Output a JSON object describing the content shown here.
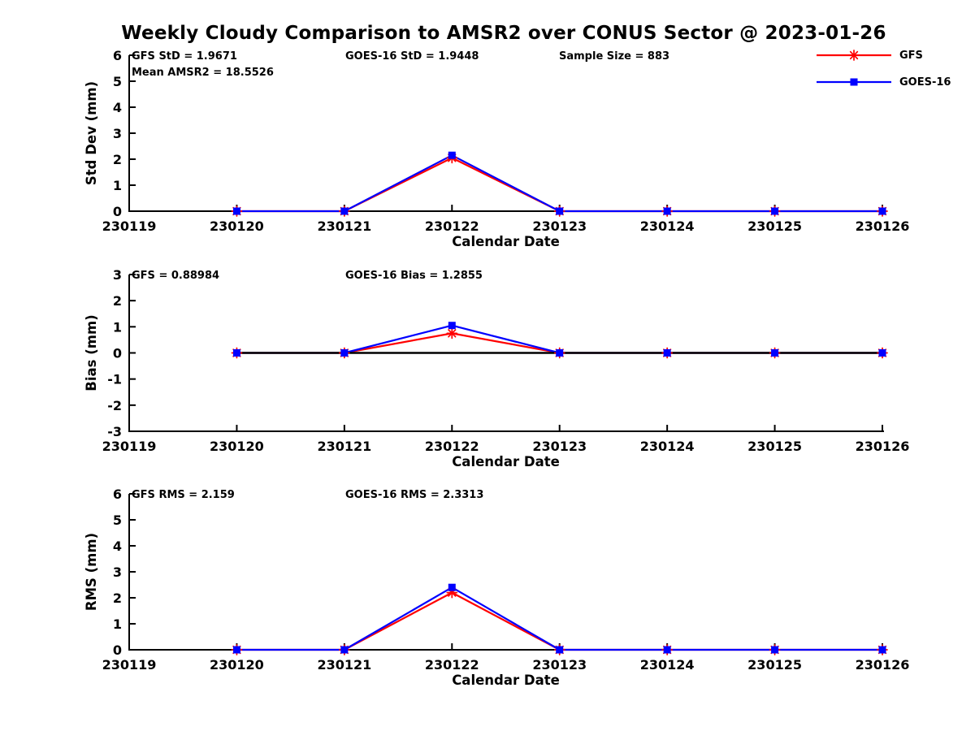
{
  "title": "Weekly Cloudy Comparison to AMSR2 over CONUS Sector @ 2023-01-26",
  "legend": {
    "items": [
      {
        "label": "GFS",
        "color": "#ff0000",
        "marker": "asterisk"
      },
      {
        "label": "GOES-16",
        "color": "#0000ff",
        "marker": "square"
      }
    ]
  },
  "colors": {
    "gfs": "#ff0000",
    "goes16": "#0000ff",
    "axis": "#000000",
    "background": "#ffffff"
  },
  "chart_data": [
    {
      "type": "line",
      "ylabel": "Std Dev (mm)",
      "xlabel": "Calendar Date",
      "ylim": [
        0,
        6
      ],
      "yticks": [
        0,
        1,
        2,
        3,
        4,
        5,
        6
      ],
      "x_axis_categories": [
        "230119",
        "230120",
        "230121",
        "230122",
        "230123",
        "230124",
        "230125",
        "230126"
      ],
      "x": [
        "230120",
        "230121",
        "230122",
        "230123",
        "230124",
        "230125",
        "230126"
      ],
      "series": [
        {
          "name": "GFS",
          "color": "#ff0000",
          "marker": "asterisk",
          "values": [
            0,
            0,
            2.05,
            0,
            0,
            0,
            0
          ]
        },
        {
          "name": "GOES-16",
          "color": "#0000ff",
          "marker": "square",
          "values": [
            0,
            0,
            2.15,
            0,
            0,
            0,
            0
          ]
        }
      ],
      "zero_line": false,
      "grid": false,
      "annotations": [
        {
          "text": "GFS StD = 1.9671",
          "col": 0,
          "row": 0
        },
        {
          "text": "Mean AMSR2 = 18.5526",
          "col": 0,
          "row": 1
        },
        {
          "text": "GOES-16 StD = 1.9448",
          "col": 1,
          "row": 0
        },
        {
          "text": "Sample Size = 883",
          "col": 2,
          "row": 0
        }
      ]
    },
    {
      "type": "line",
      "ylabel": "Bias (mm)",
      "xlabel": "Calendar Date",
      "ylim": [
        -3,
        3
      ],
      "yticks": [
        -3,
        -2,
        -1,
        0,
        1,
        2,
        3
      ],
      "x_axis_categories": [
        "230119",
        "230120",
        "230121",
        "230122",
        "230123",
        "230124",
        "230125",
        "230126"
      ],
      "x": [
        "230120",
        "230121",
        "230122",
        "230123",
        "230124",
        "230125",
        "230126"
      ],
      "series": [
        {
          "name": "GFS",
          "color": "#ff0000",
          "marker": "asterisk",
          "values": [
            0,
            0,
            0.75,
            0,
            0,
            0,
            0
          ]
        },
        {
          "name": "GOES-16",
          "color": "#0000ff",
          "marker": "square",
          "values": [
            0,
            0,
            1.05,
            0,
            0,
            0,
            0
          ]
        }
      ],
      "zero_line": true,
      "grid": false,
      "annotations": [
        {
          "text": "GFS = 0.88984",
          "col": 0,
          "row": 0
        },
        {
          "text": "GOES-16 Bias  = 1.2855",
          "col": 1,
          "row": 0
        }
      ]
    },
    {
      "type": "line",
      "ylabel": "RMS (mm)",
      "xlabel": "Calendar Date",
      "ylim": [
        0,
        6
      ],
      "yticks": [
        0,
        1,
        2,
        3,
        4,
        5,
        6
      ],
      "x_axis_categories": [
        "230119",
        "230120",
        "230121",
        "230122",
        "230123",
        "230124",
        "230125",
        "230126"
      ],
      "x": [
        "230120",
        "230121",
        "230122",
        "230123",
        "230124",
        "230125",
        "230126"
      ],
      "series": [
        {
          "name": "GFS",
          "color": "#ff0000",
          "marker": "asterisk",
          "values": [
            0,
            0,
            2.2,
            0,
            0,
            0,
            0
          ]
        },
        {
          "name": "GOES-16",
          "color": "#0000ff",
          "marker": "square",
          "values": [
            0,
            0,
            2.4,
            0,
            0,
            0,
            0
          ]
        }
      ],
      "zero_line": false,
      "grid": false,
      "annotations": [
        {
          "text": "GFS RMS = 2.159",
          "col": 0,
          "row": 0
        },
        {
          "text": "GOES-16 RMS = 2.3313",
          "col": 1,
          "row": 0
        }
      ]
    }
  ]
}
